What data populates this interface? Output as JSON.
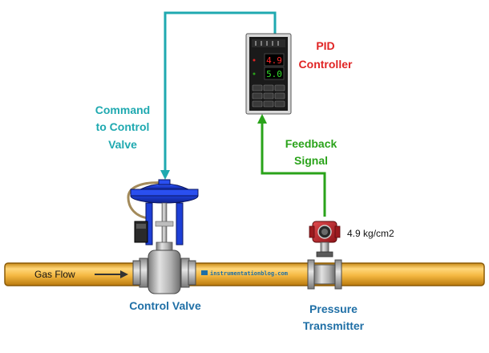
{
  "labels": {
    "pid_controller": [
      "PID",
      "Controller"
    ],
    "command": [
      "Command",
      "to Control",
      "Valve"
    ],
    "feedback": [
      "Feedback",
      "Signal"
    ],
    "control_valve": "Control Valve",
    "pressure_transmitter": [
      "Pressure",
      "Transmitter"
    ],
    "gas_flow": "Gas Flow",
    "pressure_reading": "4.9 kg/cm2",
    "watermark": "instrumentationblog.com"
  },
  "controller": {
    "pv_display": "4.9",
    "sp_display": "5.0"
  },
  "colors": {
    "command_line": "#1fa9b0",
    "feedback_line": "#2aa31a",
    "controller_label": "#e02424",
    "valve_label": "#1f6fa6",
    "pipe": "#f5b942",
    "actuator": "#1d3fd6",
    "transmitter_head": "#c0262b"
  }
}
